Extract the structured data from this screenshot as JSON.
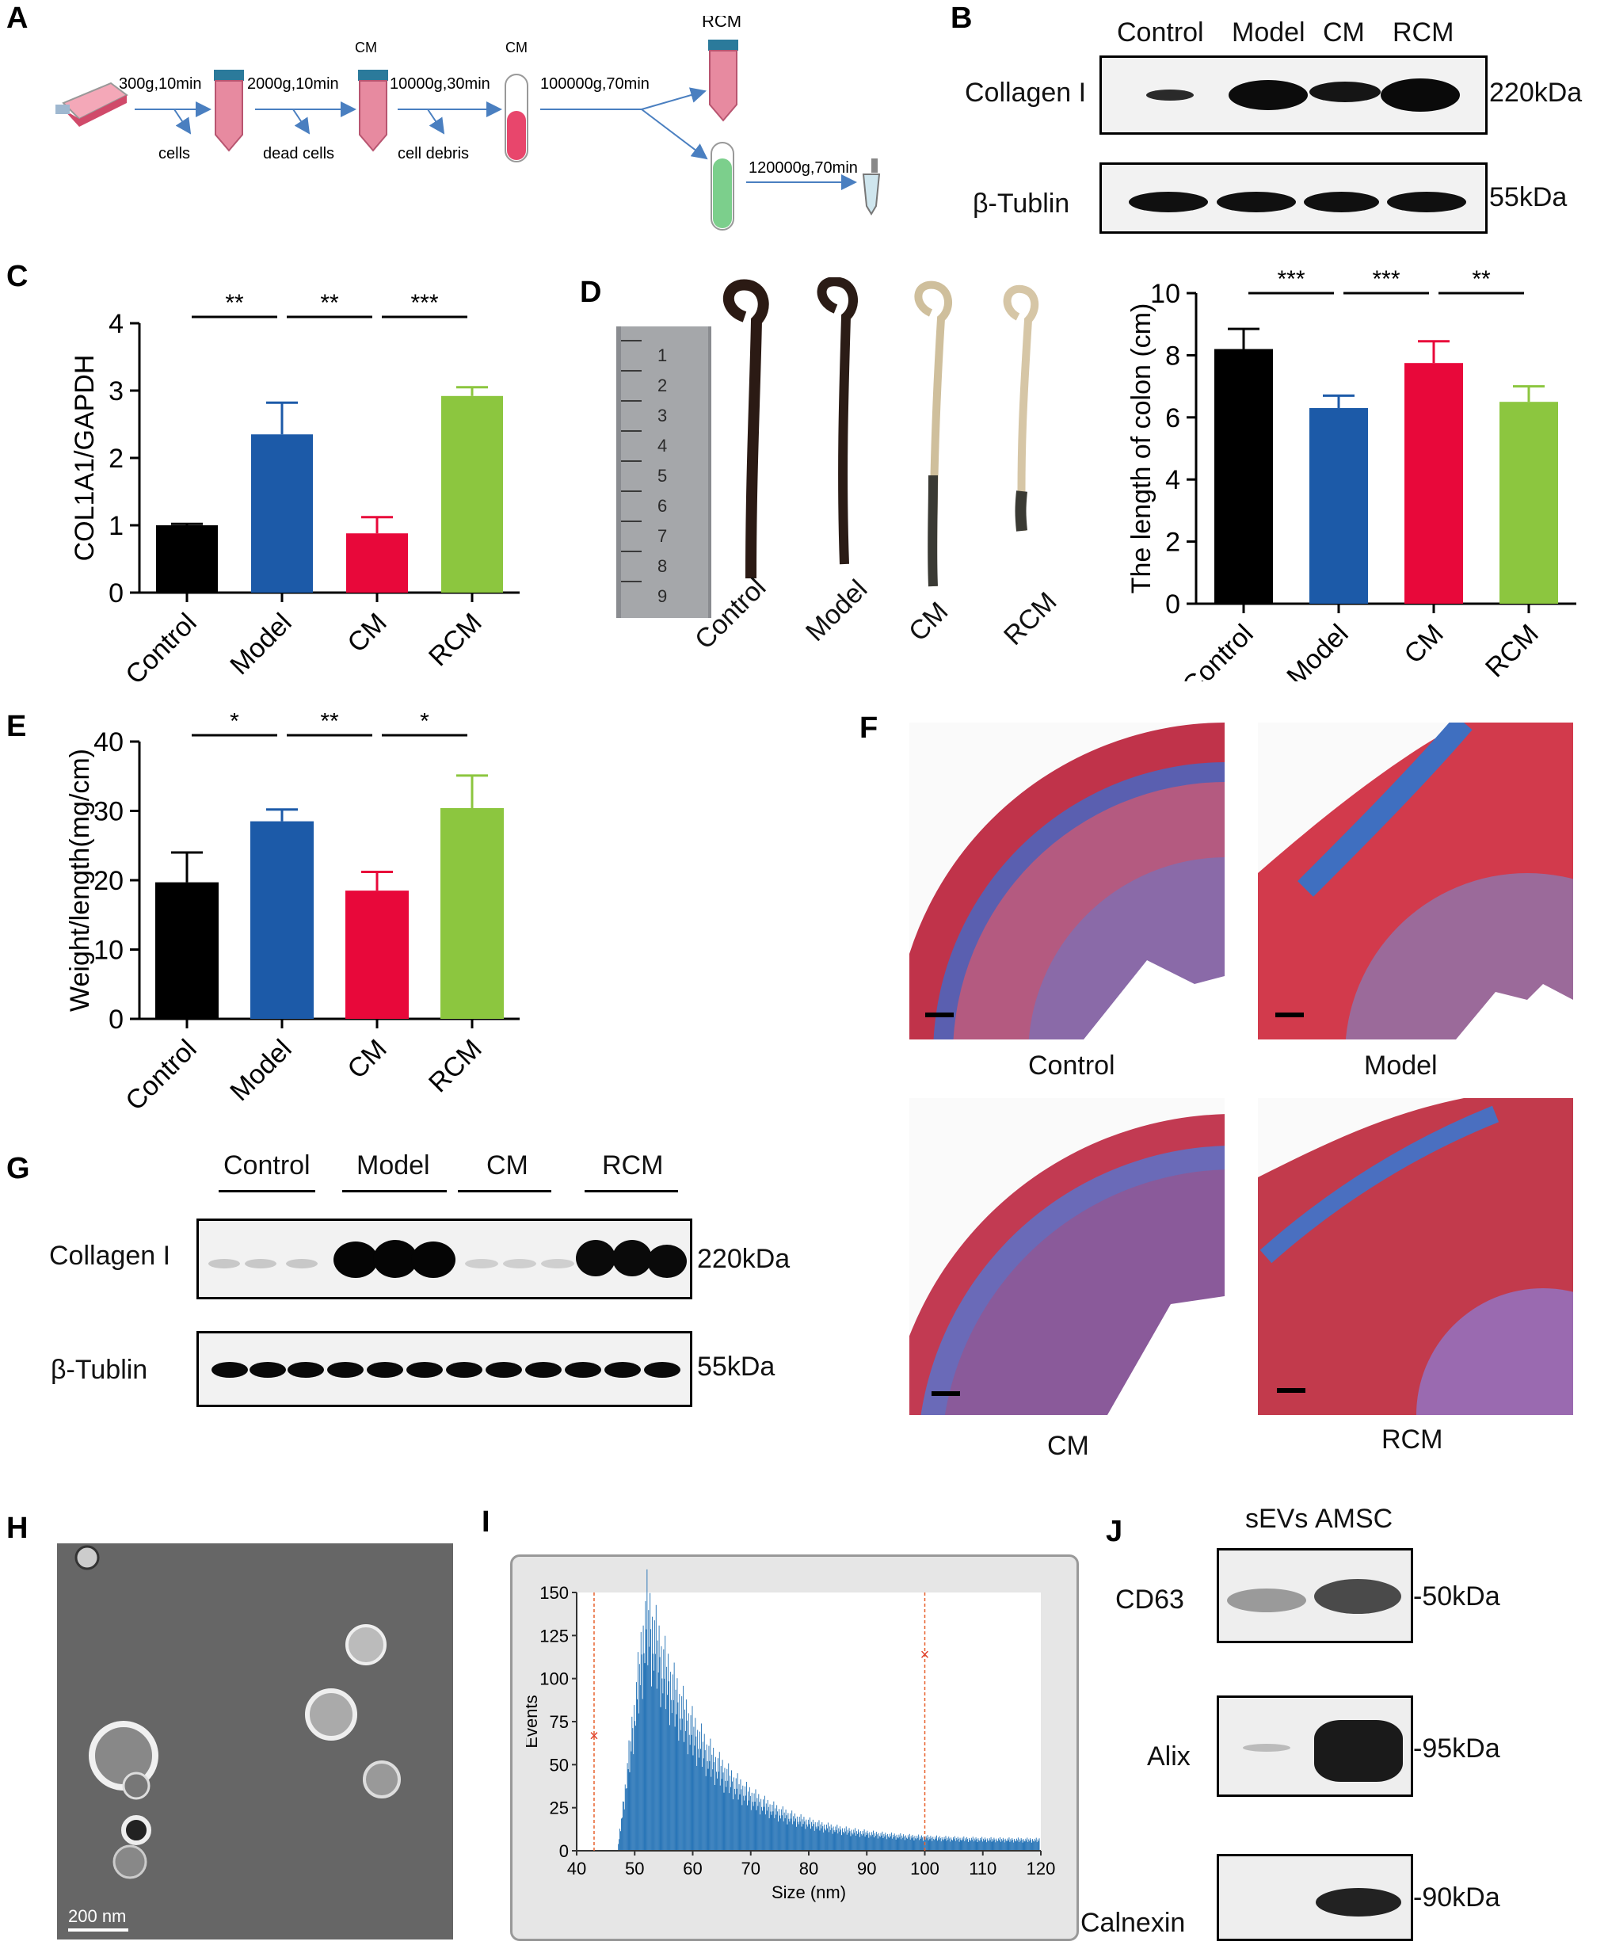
{
  "panel_labels": [
    "A",
    "B",
    "C",
    "D",
    "E",
    "F",
    "G",
    "H",
    "I",
    "J"
  ],
  "panelA": {
    "steps": [
      "300g,10min",
      "2000g,10min",
      "10000g,30min",
      "100000g,70min",
      "120000g,70min"
    ],
    "waste": [
      "cells",
      "dead cells",
      "cell debris"
    ],
    "tube_labels": [
      "CM",
      "CM",
      "RCM"
    ]
  },
  "panelB": {
    "lanes": [
      "Control",
      "Model",
      "CM",
      "RCM"
    ],
    "rows": [
      "Collagen I",
      "β-Tublin"
    ],
    "kda": [
      "220kDa",
      "55kDa"
    ]
  },
  "panelD_photo": {
    "labels": [
      "Control",
      "Model",
      "CM",
      "RCM"
    ],
    "ruler_digits": [
      "1",
      "2",
      "3",
      "4",
      "5",
      "6",
      "7",
      "8",
      "9"
    ]
  },
  "panelF": {
    "labels": [
      "Control",
      "Model",
      "CM",
      "RCM"
    ]
  },
  "panelG": {
    "groups": [
      "Control",
      "Model",
      "CM",
      "RCM"
    ],
    "rows": [
      "Collagen I",
      "β-Tublin"
    ],
    "kda": [
      "220kDa",
      "55kDa"
    ]
  },
  "panelH": {
    "scale": "200 nm"
  },
  "panelJ": {
    "lanes": [
      "sEVs",
      "AMSC"
    ],
    "rows": [
      "CD63",
      "Alix",
      "Calnexin"
    ],
    "kda": [
      "-50kDa",
      "-95kDa",
      "-90kDa"
    ]
  },
  "colors": {
    "control": "#000000",
    "model": "#1c5aa8",
    "cm": "#e8083a",
    "rcm": "#8cc63f",
    "hist": "#1f6fb4"
  },
  "chart_data": [
    {
      "id": "C",
      "type": "bar",
      "categories": [
        "Control",
        "Model",
        "CM",
        "RCM"
      ],
      "values": [
        1.0,
        2.35,
        0.88,
        2.92
      ],
      "errors": [
        0.02,
        0.47,
        0.24,
        0.13
      ],
      "ylabel": "COL1A1/GAPDH",
      "ylim": [
        0,
        4
      ],
      "yticks": [
        "0",
        "1",
        "2",
        "3",
        "4"
      ],
      "significance": [
        "**",
        "**",
        "***"
      ]
    },
    {
      "id": "D",
      "type": "bar",
      "categories": [
        "Control",
        "Model",
        "CM",
        "RCM"
      ],
      "values": [
        8.2,
        6.3,
        7.75,
        6.5
      ],
      "errors": [
        0.65,
        0.4,
        0.7,
        0.5
      ],
      "ylabel": "The length of colon (cm)",
      "ylim": [
        0,
        10
      ],
      "yticks": [
        "0",
        "2",
        "4",
        "6",
        "8",
        "10"
      ],
      "significance": [
        "***",
        "***",
        "**"
      ]
    },
    {
      "id": "E",
      "type": "bar",
      "categories": [
        "Control",
        "Model",
        "CM",
        "RCM"
      ],
      "values": [
        19.7,
        28.5,
        18.5,
        30.4
      ],
      "errors": [
        4.3,
        1.7,
        2.7,
        4.7
      ],
      "ylabel": "Weight/length(mg/cm)",
      "ylim": [
        0,
        40
      ],
      "yticks": [
        "0",
        "10",
        "20",
        "30",
        "40"
      ],
      "significance": [
        "*",
        "**",
        "*"
      ]
    },
    {
      "id": "I",
      "type": "bar",
      "xlabel": "Size (nm)",
      "ylabel": "Events",
      "xlim": [
        40,
        120
      ],
      "ylim": [
        0,
        150
      ],
      "xticks": [
        "40",
        "50",
        "60",
        "70",
        "80",
        "90",
        "100",
        "110",
        "120"
      ],
      "yticks": [
        "0",
        "25",
        "50",
        "75",
        "100",
        "125",
        "150"
      ],
      "markers": [
        {
          "x": 43,
          "y": 67
        },
        {
          "x": 100,
          "y": 114
        }
      ],
      "peak": {
        "x": 52,
        "y": 137
      }
    }
  ]
}
